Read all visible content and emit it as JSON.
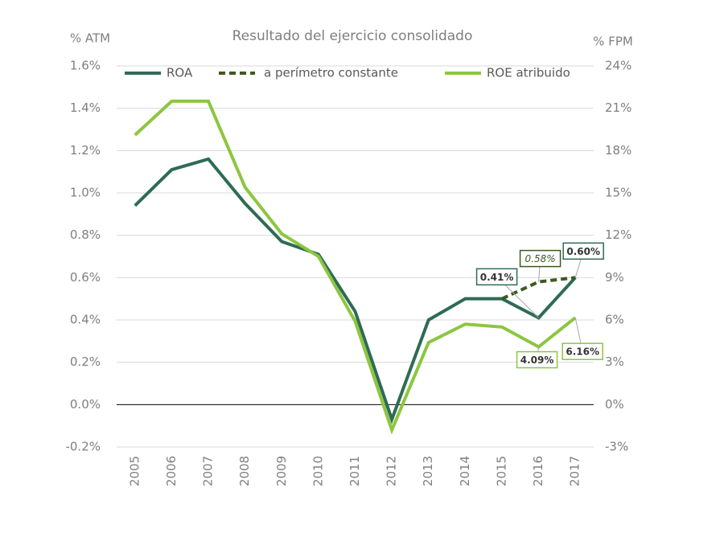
{
  "chart_data": {
    "type": "line",
    "title": "Resultado del ejercicio consolidado",
    "ylabel": "% ATM",
    "y2label": "% FPM",
    "categories": [
      "2005",
      "2006",
      "2007",
      "2008",
      "2009",
      "2010",
      "2011",
      "2012",
      "2013",
      "2014",
      "2015",
      "2016",
      "2017"
    ],
    "series": [
      {
        "name": "ROA",
        "color": "#2e6b55",
        "values": [
          0.94,
          1.11,
          1.16,
          0.95,
          0.77,
          0.71,
          0.44,
          -0.07,
          0.4,
          0.5,
          0.5,
          0.41,
          0.6
        ],
        "value_labels": [
          null,
          null,
          null,
          null,
          null,
          null,
          null,
          null,
          null,
          null,
          null,
          "0.41%",
          "0.60%"
        ]
      },
      {
        "name": "a perímetro constante",
        "color": "#3d5a1e",
        "dashed": true,
        "values": [
          null,
          null,
          null,
          null,
          null,
          null,
          null,
          null,
          null,
          null,
          0.5,
          0.58,
          0.6
        ],
        "value_labels": [
          null,
          null,
          null,
          null,
          null,
          null,
          null,
          null,
          null,
          null,
          null,
          "0.58%",
          null
        ]
      },
      {
        "name": "ROE atribuido",
        "color": "#8cc63f",
        "axis": "y2",
        "values": [
          19.1,
          21.5,
          21.5,
          15.4,
          12.1,
          10.5,
          5.9,
          -1.8,
          4.4,
          5.7,
          5.5,
          4.09,
          6.16
        ],
        "value_labels": [
          null,
          null,
          null,
          null,
          null,
          null,
          null,
          null,
          null,
          null,
          null,
          "4.09%",
          "6.16%"
        ]
      }
    ],
    "ylim": [
      -0.2,
      1.6
    ],
    "yticks": [
      {
        "value": -0.2,
        "label": "-0.2%"
      },
      {
        "value": 0,
        "label": "0.0%"
      },
      {
        "value": 0.2,
        "label": "0.2%"
      },
      {
        "value": 0.4,
        "label": "0.4%"
      },
      {
        "value": 0.6,
        "label": "0.6%"
      },
      {
        "value": 0.8,
        "label": "0.8%"
      },
      {
        "value": 1.0,
        "label": "1.0%"
      },
      {
        "value": 1.2,
        "label": "1.2%"
      },
      {
        "value": 1.4,
        "label": "1.4%"
      },
      {
        "value": 1.6,
        "label": "1.6%"
      }
    ],
    "y2lim": [
      -3,
      24
    ],
    "y2ticks": [
      {
        "value": -3,
        "label": "-3%"
      },
      {
        "value": 0,
        "label": "0%"
      },
      {
        "value": 3,
        "label": "3%"
      },
      {
        "value": 6,
        "label": "6%"
      },
      {
        "value": 9,
        "label": "9%"
      },
      {
        "value": 12,
        "label": "12%"
      },
      {
        "value": 15,
        "label": "15%"
      },
      {
        "value": 18,
        "label": "18%"
      },
      {
        "value": 21,
        "label": "21%"
      },
      {
        "value": 24,
        "label": "24%"
      }
    ],
    "grid": true
  }
}
